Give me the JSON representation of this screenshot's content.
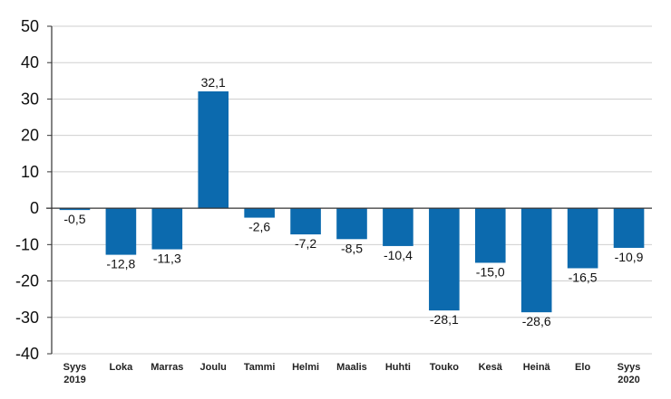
{
  "chart_data": {
    "type": "bar",
    "categories": [
      [
        "Syys",
        "2019"
      ],
      [
        "Loka"
      ],
      [
        "Marras"
      ],
      [
        "Joulu"
      ],
      [
        "Tammi"
      ],
      [
        "Helmi"
      ],
      [
        "Maalis"
      ],
      [
        "Huhti"
      ],
      [
        "Touko"
      ],
      [
        "Kesä"
      ],
      [
        "Heinä"
      ],
      [
        "Elo"
      ],
      [
        "Syys",
        "2020"
      ]
    ],
    "values": [
      -0.5,
      -12.8,
      -11.3,
      32.1,
      -2.6,
      -7.2,
      -8.5,
      -10.4,
      -28.1,
      -15.0,
      -28.6,
      -16.5,
      -10.9
    ],
    "data_labels": [
      "-0,5",
      "-12,8",
      "-11,3",
      "32,1",
      "-2,6",
      "-7,2",
      "-8,5",
      "-10,4",
      "-28,1",
      "-15,0",
      "-28,6",
      "-16,5",
      "-10,9"
    ],
    "yticks": [
      50,
      40,
      30,
      20,
      10,
      0,
      -10,
      -20,
      -30,
      -40
    ],
    "ylim": [
      -40,
      50
    ],
    "grid": true,
    "bar_color": "#0c6aae",
    "grid_color": "#cfcfcf",
    "axis_color": "#333333"
  }
}
